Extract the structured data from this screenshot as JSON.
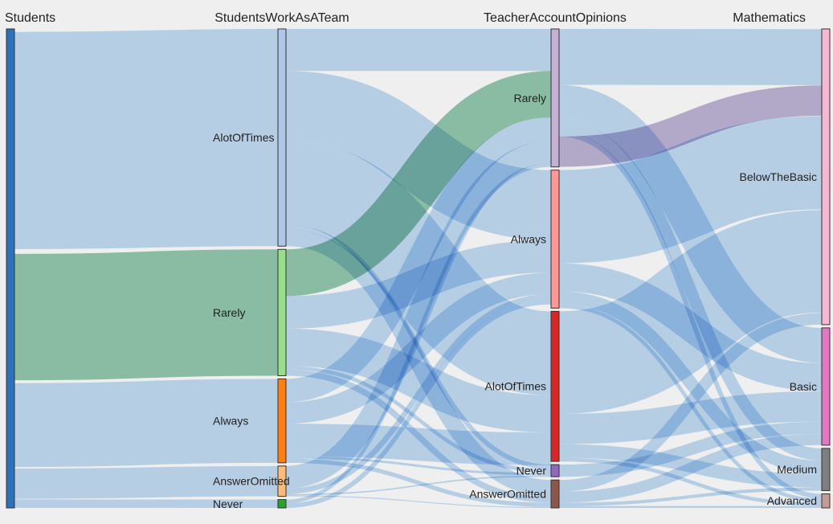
{
  "chart_data": {
    "type": "sankey",
    "columns": [
      "Students",
      "StudentsWorkAsATeam",
      "TeacherAccountOpinions",
      "Mathematics"
    ],
    "nodes": [
      {
        "id": "students",
        "label": "",
        "column": 0,
        "value": 100,
        "color": "#2b72b8"
      },
      {
        "id": "work-alotoftimes",
        "label": "AlotOfTimes",
        "column": 1,
        "value": 46.6,
        "color": "#aec7e8"
      },
      {
        "id": "work-rarely",
        "label": "Rarely",
        "column": 1,
        "value": 27.1,
        "color": "#98df8a"
      },
      {
        "id": "work-always",
        "label": "Always",
        "column": 1,
        "value": 18.0,
        "color": "#ff7f0e"
      },
      {
        "id": "work-answeromitted",
        "label": "AnswerOmitted",
        "column": 1,
        "value": 6.5,
        "color": "#ffbb78"
      },
      {
        "id": "work-never",
        "label": "Never",
        "column": 1,
        "value": 1.8,
        "color": "#2ca02c"
      },
      {
        "id": "teacher-rarely",
        "label": "Rarely",
        "column": 2,
        "value": 29.6,
        "color": "#c5b0d5"
      },
      {
        "id": "teacher-always",
        "label": "Always",
        "column": 2,
        "value": 29.6,
        "color": "#ff9896"
      },
      {
        "id": "teacher-alotoftimes",
        "label": "AlotOfTimes",
        "column": 2,
        "value": 32.2,
        "color": "#d62728"
      },
      {
        "id": "teacher-never",
        "label": "Never",
        "column": 2,
        "value": 2.6,
        "color": "#9467bd"
      },
      {
        "id": "teacher-answeromitted",
        "label": "AnswerOmitted",
        "column": 2,
        "value": 6.0,
        "color": "#8c564b"
      },
      {
        "id": "math-belowthebasic",
        "label": "BelowTheBasic",
        "column": 3,
        "value": 63.0,
        "color": "#f7b6d2"
      },
      {
        "id": "math-basic",
        "label": "Basic",
        "column": 3,
        "value": 25.0,
        "color": "#e377c2"
      },
      {
        "id": "math-medium",
        "label": "Medium",
        "column": 3,
        "value": 9.0,
        "color": "#7f7f7f"
      },
      {
        "id": "math-advanced",
        "label": "Advanced",
        "column": 3,
        "value": 3.0,
        "color": "#c49c94"
      }
    ],
    "links": [
      {
        "source": "students",
        "target": "work-alotoftimes",
        "value": 46.6,
        "highlight": false
      },
      {
        "source": "students",
        "target": "work-rarely",
        "value": 27.1,
        "highlight": true
      },
      {
        "source": "students",
        "target": "work-always",
        "value": 18.0,
        "highlight": false
      },
      {
        "source": "students",
        "target": "work-answeromitted",
        "value": 6.5,
        "highlight": false
      },
      {
        "source": "students",
        "target": "work-never",
        "value": 1.8,
        "highlight": false
      },
      {
        "source": "work-alotoftimes",
        "target": "teacher-rarely",
        "value": 9.0,
        "highlight": false
      },
      {
        "source": "work-alotoftimes",
        "target": "teacher-always",
        "value": 15.0,
        "highlight": false
      },
      {
        "source": "work-alotoftimes",
        "target": "teacher-alotoftimes",
        "value": 18.0,
        "highlight": false
      },
      {
        "source": "work-alotoftimes",
        "target": "teacher-never",
        "value": 1.0,
        "highlight": false
      },
      {
        "source": "work-alotoftimes",
        "target": "teacher-answeromitted",
        "value": 3.6,
        "highlight": false
      },
      {
        "source": "work-rarely",
        "target": "teacher-rarely",
        "value": 10.0,
        "highlight": true
      },
      {
        "source": "work-rarely",
        "target": "teacher-always",
        "value": 7.0,
        "highlight": false
      },
      {
        "source": "work-rarely",
        "target": "teacher-alotoftimes",
        "value": 8.0,
        "highlight": false
      },
      {
        "source": "work-rarely",
        "target": "teacher-never",
        "value": 0.8,
        "highlight": false
      },
      {
        "source": "work-rarely",
        "target": "teacher-answeromitted",
        "value": 1.3,
        "highlight": false
      },
      {
        "source": "work-always",
        "target": "teacher-rarely",
        "value": 5.0,
        "highlight": false
      },
      {
        "source": "work-always",
        "target": "teacher-always",
        "value": 4.6,
        "highlight": false
      },
      {
        "source": "work-always",
        "target": "teacher-alotoftimes",
        "value": 7.0,
        "highlight": false
      },
      {
        "source": "work-always",
        "target": "teacher-never",
        "value": 0.5,
        "highlight": false
      },
      {
        "source": "work-always",
        "target": "teacher-answeromitted",
        "value": 0.9,
        "highlight": false
      },
      {
        "source": "work-answeromitted",
        "target": "teacher-rarely",
        "value": 4.8,
        "highlight": false
      },
      {
        "source": "work-answeromitted",
        "target": "teacher-always",
        "value": 1.2,
        "highlight": false
      },
      {
        "source": "work-answeromitted",
        "target": "teacher-never",
        "value": 0.3,
        "highlight": false
      },
      {
        "source": "work-answeromitted",
        "target": "teacher-answeromitted",
        "value": 0.2,
        "highlight": false
      },
      {
        "source": "work-never",
        "target": "teacher-rarely",
        "value": 0.8,
        "highlight": false
      },
      {
        "source": "work-never",
        "target": "teacher-always",
        "value": 1.0,
        "highlight": false
      },
      {
        "source": "teacher-rarely",
        "target": "math-belowthebasic",
        "value": 12.0,
        "highlight": false
      },
      {
        "source": "teacher-rarely",
        "target": "math-basic",
        "value": 7.5,
        "highlight": false
      },
      {
        "source": "teacher-rarely",
        "target": "math-medium",
        "value": 2.6,
        "highlight": false
      },
      {
        "source": "teacher-rarely",
        "target": "math-advanced",
        "value": 1.0,
        "highlight": false
      },
      {
        "source": "teacher-rarely",
        "target": "math-belowthebasic",
        "value": 6.5,
        "highlight": true
      },
      {
        "source": "teacher-always",
        "target": "math-belowthebasic",
        "value": 20.0,
        "highlight": false
      },
      {
        "source": "teacher-always",
        "target": "math-basic",
        "value": 6.0,
        "highlight": false
      },
      {
        "source": "teacher-always",
        "target": "math-medium",
        "value": 2.8,
        "highlight": false
      },
      {
        "source": "teacher-always",
        "target": "math-advanced",
        "value": 0.8,
        "highlight": false
      },
      {
        "source": "teacher-alotoftimes",
        "target": "math-belowthebasic",
        "value": 22.0,
        "highlight": false
      },
      {
        "source": "teacher-alotoftimes",
        "target": "math-basic",
        "value": 6.5,
        "highlight": false
      },
      {
        "source": "teacher-alotoftimes",
        "target": "math-medium",
        "value": 2.9,
        "highlight": false
      },
      {
        "source": "teacher-alotoftimes",
        "target": "math-advanced",
        "value": 0.8,
        "highlight": false
      },
      {
        "source": "teacher-never",
        "target": "math-basic",
        "value": 2.6,
        "highlight": false
      },
      {
        "source": "teacher-answeromitted",
        "target": "math-belowthebasic",
        "value": 2.5,
        "highlight": false
      },
      {
        "source": "teacher-answeromitted",
        "target": "math-basic",
        "value": 2.4,
        "highlight": false
      },
      {
        "source": "teacher-answeromitted",
        "target": "math-medium",
        "value": 0.7,
        "highlight": false
      },
      {
        "source": "teacher-answeromitted",
        "target": "math-advanced",
        "value": 0.4,
        "highlight": false
      }
    ],
    "colors": {
      "link": "#a8cdf0",
      "link_highlight_green": "#7fbfa0",
      "link_highlight_purple": "#b3a6cf",
      "background": "#efefef"
    }
  }
}
